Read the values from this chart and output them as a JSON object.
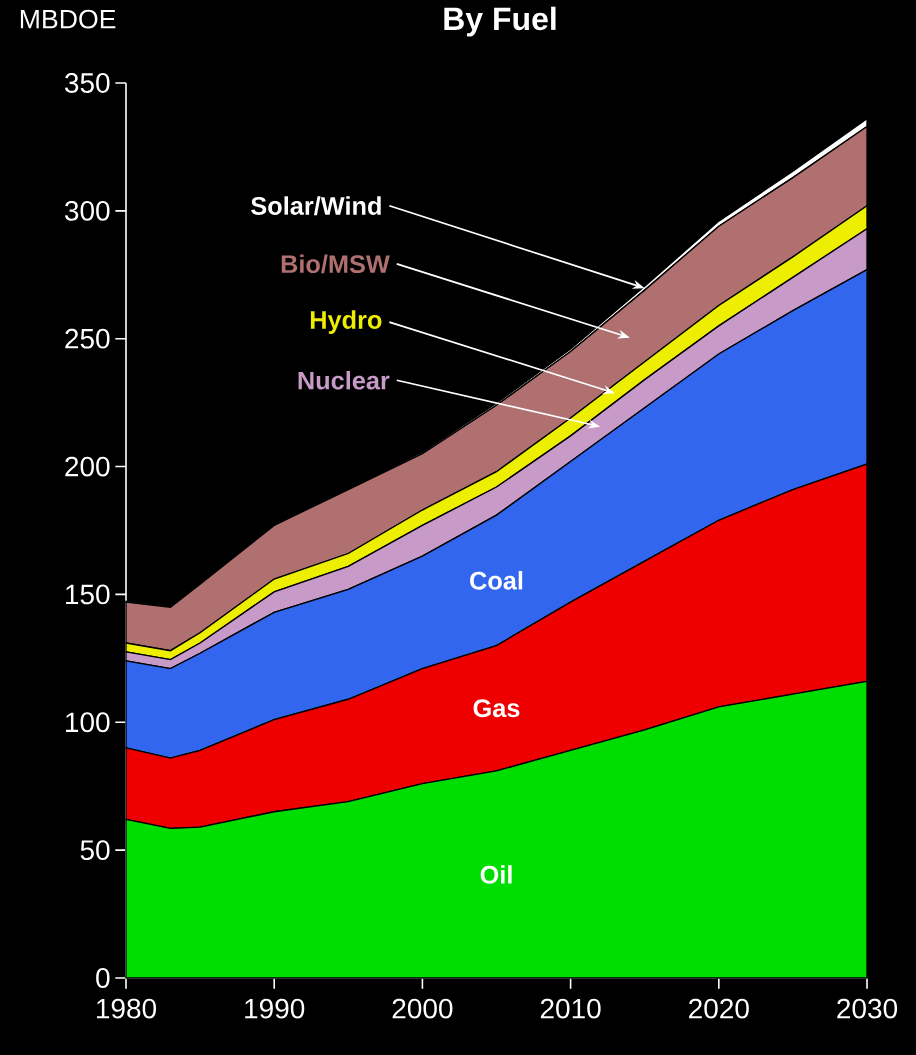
{
  "chart_data": {
    "type": "area",
    "stacked": true,
    "title": "By Fuel",
    "ylabel": "MBDOE",
    "x": [
      1980,
      1983,
      1985,
      1990,
      1995,
      2000,
      2005,
      2010,
      2015,
      2020,
      2025,
      2030
    ],
    "series": [
      {
        "name": "Oil",
        "color": "#00dd00",
        "values": [
          62,
          58.5,
          59,
          65,
          69,
          76,
          81,
          89,
          97,
          106,
          111,
          116
        ]
      },
      {
        "name": "Gas",
        "color": "#ee0000",
        "values": [
          28,
          27.5,
          30,
          36,
          40,
          45,
          49,
          58,
          66,
          73,
          80,
          85
        ]
      },
      {
        "name": "Coal",
        "color": "#3366ee",
        "values": [
          34,
          35,
          38,
          42,
          43,
          44,
          51,
          55,
          60,
          65,
          70,
          76
        ]
      },
      {
        "name": "Nuclear",
        "color": "#c89ac8",
        "values": [
          3.5,
          3.5,
          4,
          8,
          9,
          12,
          11,
          10,
          11,
          11,
          13,
          16
        ]
      },
      {
        "name": "Hydro",
        "color": "#eeee00",
        "values": [
          3.5,
          3.5,
          4,
          5,
          5,
          6,
          6,
          7,
          7,
          8,
          8,
          9
        ]
      },
      {
        "name": "Bio/MSW",
        "color": "#b07070",
        "values": [
          16,
          17,
          19,
          21,
          25,
          22,
          26,
          26,
          28,
          31,
          31,
          31
        ]
      },
      {
        "name": "Solar/Wind",
        "color": "#ffffff",
        "values": [
          0.3,
          0.3,
          0.3,
          0.4,
          0.5,
          0.6,
          0.8,
          1,
          1.5,
          2,
          2.5,
          3
        ]
      }
    ],
    "xlim": [
      1980,
      2030
    ],
    "ylim": [
      0,
      350
    ],
    "xticks": [
      1980,
      1990,
      2000,
      2010,
      2020,
      2030
    ],
    "yticks": [
      0,
      50,
      100,
      150,
      200,
      250,
      300,
      350
    ]
  }
}
